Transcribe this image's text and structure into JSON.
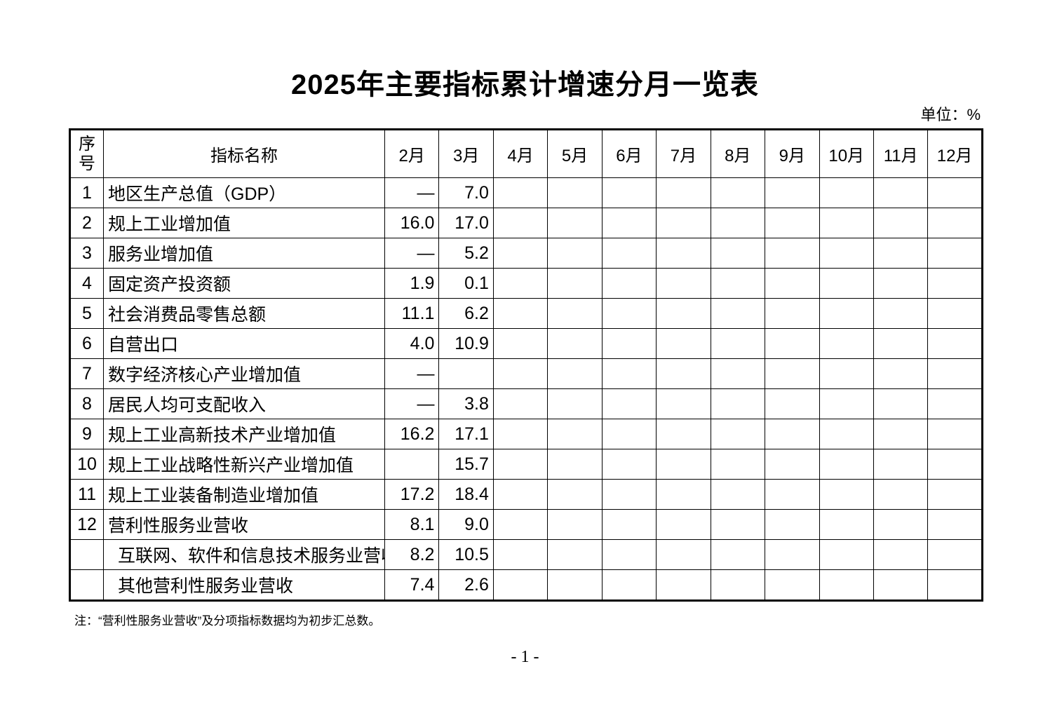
{
  "title": "2025年主要指标累计增速分月一览表",
  "unit": "单位：%",
  "table": {
    "headers": {
      "seq": "序号",
      "name": "指标名称",
      "months": [
        "2月",
        "3月",
        "4月",
        "5月",
        "6月",
        "7月",
        "8月",
        "9月",
        "10月",
        "11月",
        "12月"
      ]
    },
    "rows": [
      {
        "seq": "1",
        "name": "地区生产总值（GDP）",
        "values": [
          "—",
          "7.0"
        ]
      },
      {
        "seq": "2",
        "name": "规上工业增加值",
        "values": [
          "16.0",
          "17.0"
        ]
      },
      {
        "seq": "3",
        "name": "服务业增加值",
        "values": [
          "—",
          "5.2"
        ]
      },
      {
        "seq": "4",
        "name": "固定资产投资额",
        "values": [
          "1.9",
          "0.1"
        ]
      },
      {
        "seq": "5",
        "name": "社会消费品零售总额",
        "values": [
          "11.1",
          "6.2"
        ]
      },
      {
        "seq": "6",
        "name": "自营出口",
        "values": [
          "4.0",
          "10.9"
        ]
      },
      {
        "seq": "7",
        "name": "数字经济核心产业增加值",
        "values": [
          "—",
          ""
        ]
      },
      {
        "seq": "8",
        "name": "居民人均可支配收入",
        "values": [
          "—",
          "3.8"
        ]
      },
      {
        "seq": "9",
        "name": "规上工业高新技术产业增加值",
        "values": [
          "16.2",
          "17.1"
        ]
      },
      {
        "seq": "10",
        "name": "规上工业战略性新兴产业增加值",
        "values": [
          "",
          "15.7"
        ]
      },
      {
        "seq": "11",
        "name": "规上工业装备制造业增加值",
        "values": [
          "17.2",
          "18.4"
        ]
      },
      {
        "seq": "12",
        "name": "营利性服务业营收",
        "values": [
          "8.1",
          "9.0"
        ]
      },
      {
        "seq": "",
        "name": "互联网、软件和信息技术服务业营收",
        "values": [
          "8.2",
          "10.5"
        ],
        "sub": true
      },
      {
        "seq": "",
        "name": "其他营利性服务业营收",
        "values": [
          "7.4",
          "2.6"
        ],
        "sub": true
      }
    ]
  },
  "note": "注：“营利性服务业营收”及分项指标数据均为初步汇总数。",
  "page_number": "- 1 -"
}
